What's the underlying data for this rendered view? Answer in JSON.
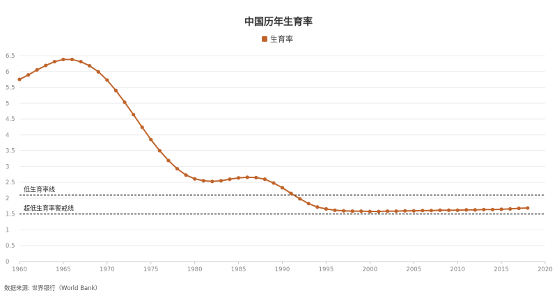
{
  "chart_data": {
    "type": "line",
    "title": "中国历年生育率",
    "xlabel": "",
    "ylabel": "",
    "xlim": [
      1960,
      2020
    ],
    "ylim": [
      0,
      6.5
    ],
    "x_ticks": [
      "1960",
      "1965",
      "1970",
      "1975",
      "1980",
      "1985",
      "1990",
      "1995",
      "2000",
      "2005",
      "2010",
      "2015",
      "2020"
    ],
    "y_ticks": [
      "0",
      "0.5",
      "1",
      "1.5",
      "2",
      "2.5",
      "3",
      "3.5",
      "4",
      "4.5",
      "5",
      "5.5",
      "6",
      "6.5"
    ],
    "grid": true,
    "legend_position": "top-center",
    "series": [
      {
        "name": "生育率",
        "color": "#c0642b",
        "x": [
          1960,
          1961,
          1962,
          1963,
          1964,
          1965,
          1966,
          1967,
          1968,
          1969,
          1970,
          1971,
          1972,
          1973,
          1974,
          1975,
          1976,
          1977,
          1978,
          1979,
          1980,
          1981,
          1982,
          1983,
          1984,
          1985,
          1986,
          1987,
          1988,
          1989,
          1990,
          1991,
          1992,
          1993,
          1994,
          1995,
          1996,
          1997,
          1998,
          1999,
          2000,
          2001,
          2002,
          2003,
          2004,
          2005,
          2006,
          2007,
          2008,
          2009,
          2010,
          2011,
          2012,
          2013,
          2014,
          2015,
          2016,
          2017,
          2018
        ],
        "values": [
          5.75,
          5.89,
          6.05,
          6.19,
          6.31,
          6.38,
          6.38,
          6.31,
          6.18,
          5.99,
          5.73,
          5.4,
          5.03,
          4.64,
          4.24,
          3.85,
          3.5,
          3.19,
          2.93,
          2.73,
          2.61,
          2.55,
          2.53,
          2.55,
          2.6,
          2.64,
          2.66,
          2.65,
          2.6,
          2.48,
          2.33,
          2.15,
          1.98,
          1.83,
          1.72,
          1.66,
          1.62,
          1.6,
          1.59,
          1.59,
          1.58,
          1.58,
          1.59,
          1.59,
          1.6,
          1.6,
          1.61,
          1.61,
          1.62,
          1.62,
          1.62,
          1.63,
          1.63,
          1.64,
          1.64,
          1.65,
          1.66,
          1.68,
          1.69
        ]
      }
    ],
    "reference_lines": [
      {
        "label": "低生育率线",
        "value": 2.1
      },
      {
        "label": "超低生育率警戒线",
        "value": 1.5
      }
    ],
    "source": "数据来源: 世界银行（World Bank）"
  }
}
